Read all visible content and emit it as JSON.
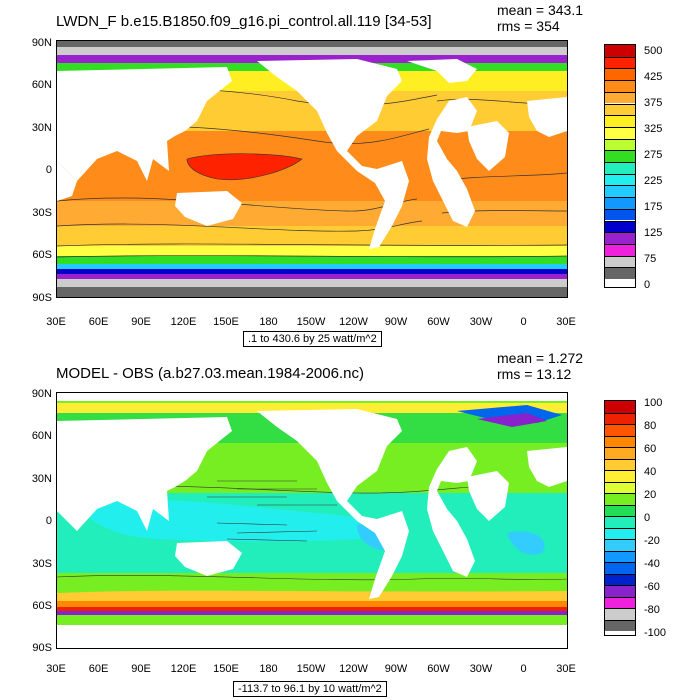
{
  "panels": [
    {
      "title": "LWDN_F b.e15.B1850.f09_g16.pi_control.all.119 [34-53]",
      "stats": {
        "mean": "mean = 343.1",
        "rms": "rms = 354"
      },
      "info": ".1 to 430.6 by 25 watt/m^2",
      "colorbar_labels": [
        "500",
        "425",
        "375",
        "325",
        "275",
        "225",
        "175",
        "125",
        "75",
        "0"
      ]
    },
    {
      "title": "MODEL - OBS (a.b27.03.mean.1984-2006.nc)",
      "stats": {
        "mean": "mean = 1.272",
        "rms": "rms = 13.12"
      },
      "info": "-113.7 to 96.1 by 10 watt/m^2",
      "colorbar_labels": [
        "100",
        "80",
        "60",
        "40",
        "20",
        "0",
        "-20",
        "-40",
        "-60",
        "-80",
        "-100"
      ]
    }
  ],
  "lat_labels": [
    "90N",
    "60N",
    "30N",
    "0",
    "30S",
    "60S",
    "90S"
  ],
  "lon_labels": [
    "30E",
    "60E",
    "90E",
    "120E",
    "150E",
    "180",
    "150W",
    "120W",
    "90W",
    "60W",
    "30W",
    "0",
    "30E"
  ],
  "colors": {
    "top_scale": [
      "#cc0000",
      "#ff2200",
      "#ff6600",
      "#ff8c1a",
      "#ffaa33",
      "#ffcc33",
      "#ffee22",
      "#ffff44",
      "#bbff33",
      "#33dd22",
      "#22eebb",
      "#22eeee",
      "#22ccff",
      "#1199ff",
      "#0055ee",
      "#0000cc",
      "#9922cc",
      "#ee22dd",
      "#cccccc",
      "#666666"
    ],
    "bottom_scale": [
      "#cc0000",
      "#ee2200",
      "#ff5500",
      "#ff8800",
      "#ffaa22",
      "#ffcc33",
      "#ffee33",
      "#ddff33",
      "#77ee22",
      "#22dd55",
      "#22eebb",
      "#22eeee",
      "#33ccff",
      "#1199ff",
      "#0066ee",
      "#0022cc",
      "#8822cc",
      "#ee22dd",
      "#cccccc",
      "#666666"
    ]
  }
}
